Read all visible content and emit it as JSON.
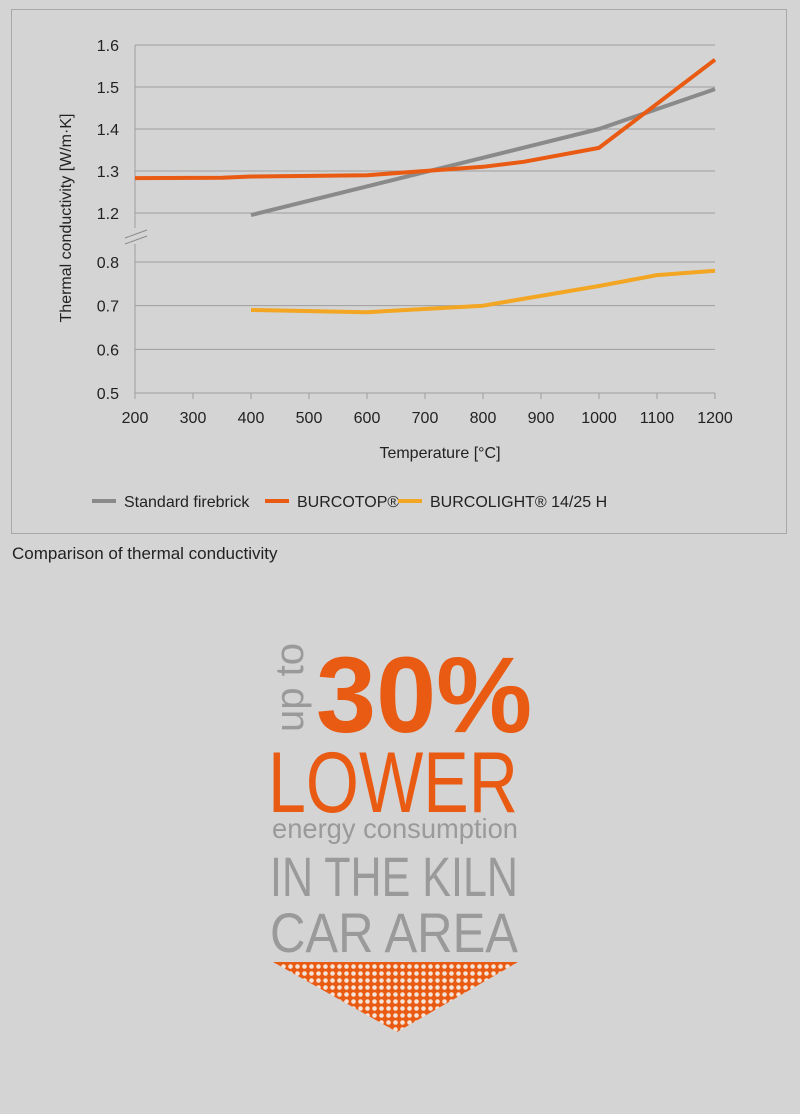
{
  "chart_data": {
    "type": "line",
    "xlabel": "Temperature [°C]",
    "ylabel": "Thermal conductivity [W/m·K]",
    "xlim": [
      200,
      1200
    ],
    "x_ticks": [
      200,
      300,
      400,
      500,
      600,
      700,
      800,
      900,
      1000,
      1100,
      1200
    ],
    "y_ticks_upper": [
      "1.2",
      "1.3",
      "1.4",
      "1.5",
      "1.6"
    ],
    "y_ticks_lower": [
      "0.5",
      "0.6",
      "0.7",
      "0.8"
    ],
    "ylim_upper": [
      1.2,
      1.6
    ],
    "ylim_lower": [
      0.5,
      0.8
    ],
    "broken_axis": true,
    "legend_position": "bottom",
    "series": [
      {
        "name": "Standard firebrick",
        "color": "#8a8a8a",
        "points": [
          [
            400,
            1.195
          ],
          [
            1000,
            1.4
          ],
          [
            1200,
            1.495
          ]
        ]
      },
      {
        "name": "BURCOTOP®",
        "color": "#e95a12",
        "points": [
          [
            200,
            1.283
          ],
          [
            350,
            1.284
          ],
          [
            400,
            1.287
          ],
          [
            600,
            1.29
          ],
          [
            700,
            1.3
          ],
          [
            800,
            1.31
          ],
          [
            870,
            1.322
          ],
          [
            1000,
            1.355
          ],
          [
            1100,
            1.46
          ],
          [
            1200,
            1.565
          ]
        ]
      },
      {
        "name": "BURCOLIGHT® 14/25 H",
        "color": "#f2a623",
        "points": [
          [
            400,
            0.69
          ],
          [
            600,
            0.685
          ],
          [
            800,
            0.7
          ],
          [
            1000,
            0.745
          ],
          [
            1100,
            0.77
          ],
          [
            1200,
            0.78
          ]
        ]
      }
    ]
  },
  "caption": "Comparison of thermal conductivity",
  "promo": {
    "prefix": "up to",
    "percent": "30%",
    "line_lower": "LOWER",
    "line_energy": "energy consumption",
    "line_kiln": "IN THE KILN",
    "line_car": "CAR AREA",
    "accent_color": "#e95a12",
    "grey_color": "#9a9a9a"
  }
}
